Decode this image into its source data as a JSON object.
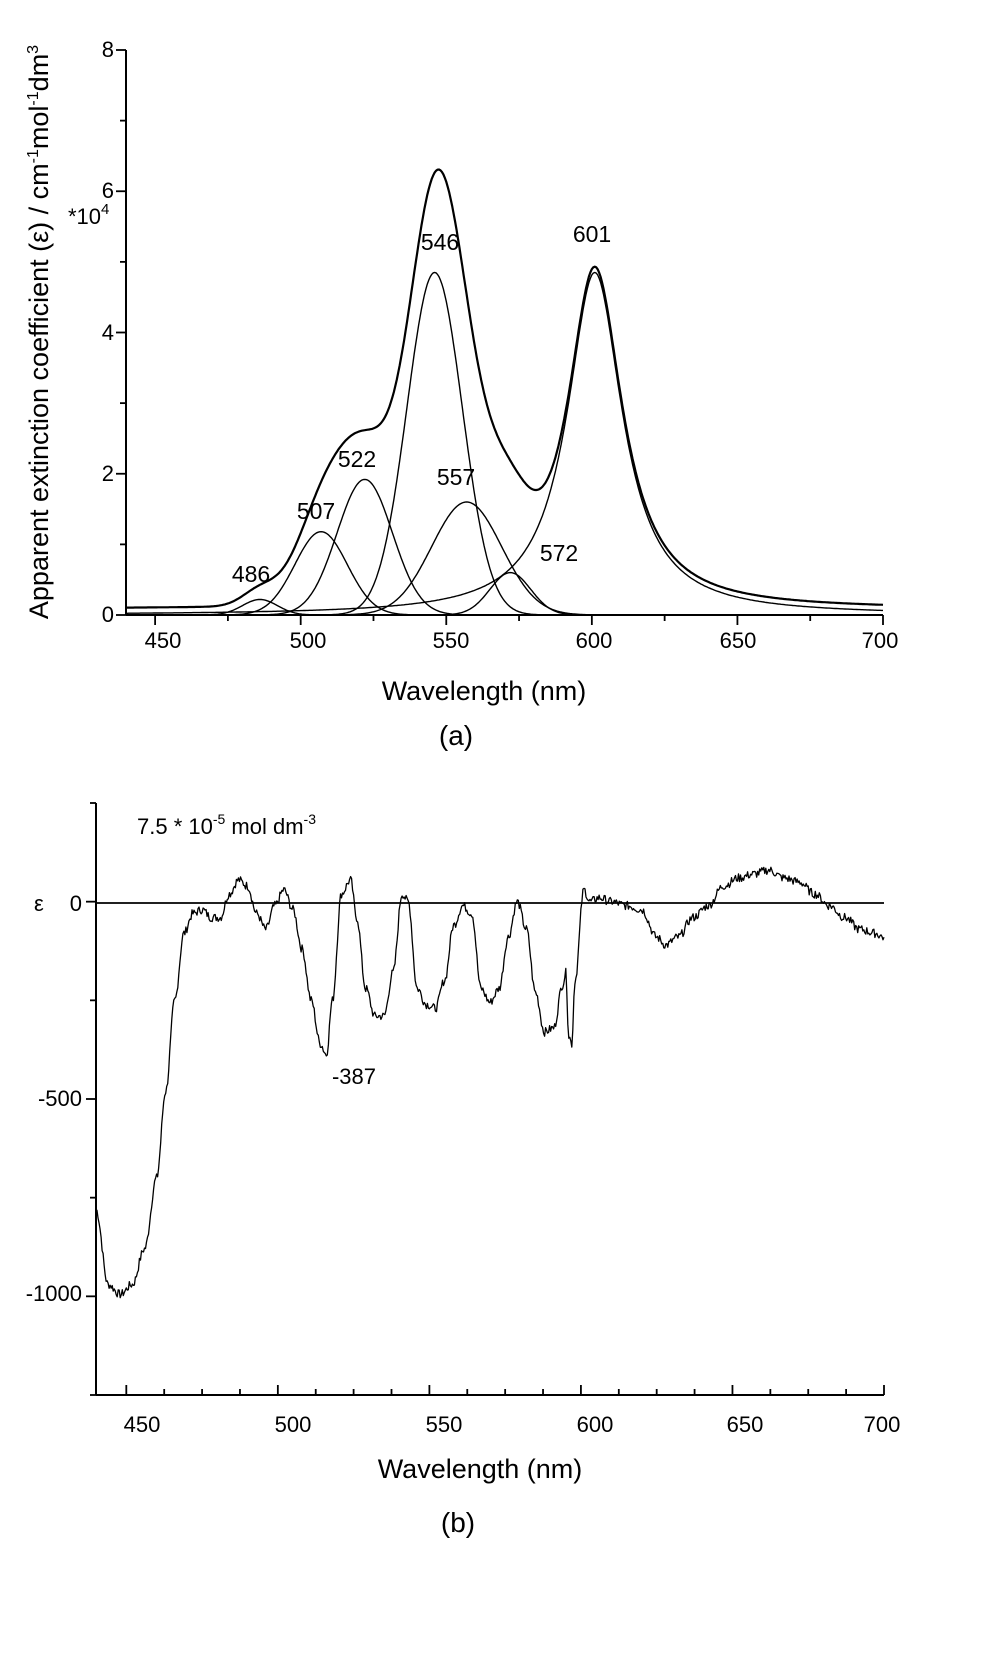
{
  "chart_data": [
    {
      "type": "line",
      "panel_label": "(a)",
      "xlabel": "Wavelength (nm)",
      "ylabel": "Apparent extinction coefficient (ε) / cm-1mol-1dm3",
      "ylabel_main": "Apparent extinction coefficient (",
      "ylabel_eps": "ε",
      "ylabel_unit": ") / cm",
      "ylabel_sup1": "-1",
      "ylabel_mol": "mol",
      "ylabel_sup2": "-1",
      "ylabel_dm": "dm",
      "ylabel_sup3": "3",
      "y_multiplier": "*10",
      "y_multiplier_exp": "4",
      "xlim": [
        440,
        700
      ],
      "ylim": [
        0,
        8
      ],
      "x_ticks": [
        "450",
        "500",
        "550",
        "600",
        "650",
        "700"
      ],
      "y_ticks": [
        "0",
        "2",
        "4",
        "6",
        "8"
      ],
      "grid": false,
      "peak_labels": [
        "486",
        "507",
        "522",
        "546",
        "557",
        "572",
        "601"
      ],
      "series": [
        {
          "type": "gaussian",
          "center": 486,
          "amplitude": 0.22,
          "sigma": 6
        },
        {
          "type": "gaussian",
          "center": 507,
          "amplitude": 1.18,
          "sigma": 9
        },
        {
          "type": "gaussian",
          "center": 522,
          "amplitude": 1.92,
          "sigma": 9.5
        },
        {
          "type": "gaussian",
          "center": 546,
          "amplitude": 4.85,
          "sigma": 9.5
        },
        {
          "type": "gaussian",
          "center": 557,
          "amplitude": 1.6,
          "sigma": 12
        },
        {
          "type": "gaussian",
          "center": 572,
          "amplitude": 0.6,
          "sigma": 7
        },
        {
          "type": "lorentzian",
          "center": 601,
          "amplitude": 4.85,
          "hwhm": 11.5
        },
        {
          "type": "envelope_sum",
          "baseline": 0.08
        }
      ]
    },
    {
      "type": "line",
      "panel_label": "(b)",
      "annotation_main": "7.5 * 10",
      "annotation_exp": "-5",
      "annotation_unit": " mol dm",
      "annotation_exp2": "-3",
      "xlabel": "Wavelength (nm)",
      "ylabel": "ε",
      "xlim": [
        440,
        700
      ],
      "ylim": [
        -1250,
        250
      ],
      "x_ticks": [
        "450",
        "500",
        "550",
        "600",
        "650",
        "700"
      ],
      "y_ticks": [
        "0",
        "-500",
        "-1000"
      ],
      "min_label": "-387",
      "grid": false,
      "x": [
        440,
        444,
        448,
        452,
        456,
        460,
        463,
        466,
        469,
        472,
        475,
        478,
        481,
        484,
        487,
        490,
        493,
        496,
        499,
        502,
        505,
        508,
        511,
        514,
        516,
        518,
        521,
        524,
        526,
        529,
        532,
        535,
        538,
        541,
        543,
        546,
        549,
        552,
        555,
        558,
        561,
        564,
        567,
        570,
        573,
        576,
        579,
        582,
        585,
        588,
        591,
        594,
        595,
        596,
        597,
        598,
        601,
        603,
        606,
        610,
        615,
        620,
        625,
        628,
        632,
        637,
        642,
        647,
        652,
        657,
        662,
        667,
        672,
        677,
        682,
        687,
        692,
        697,
        700
      ],
      "y": [
        -780,
        -970,
        -995,
        -970,
        -880,
        -700,
        -480,
        -250,
        -80,
        -30,
        -20,
        -40,
        -40,
        20,
        55,
        40,
        -30,
        -70,
        -10,
        30,
        -20,
        -120,
        -250,
        -360,
        -387,
        -250,
        20,
        55,
        -40,
        -220,
        -290,
        -290,
        -180,
        20,
        0,
        -220,
        -260,
        -270,
        -200,
        -60,
        -10,
        -30,
        -220,
        -255,
        -220,
        -90,
        0,
        -70,
        -230,
        -330,
        -320,
        -210,
        -180,
        -340,
        -360,
        -200,
        30,
        0,
        10,
        0,
        -10,
        -20,
        -90,
        -110,
        -90,
        -40,
        -10,
        40,
        60,
        70,
        80,
        60,
        50,
        20,
        -10,
        -40,
        -70,
        -80,
        -90
      ]
    }
  ]
}
